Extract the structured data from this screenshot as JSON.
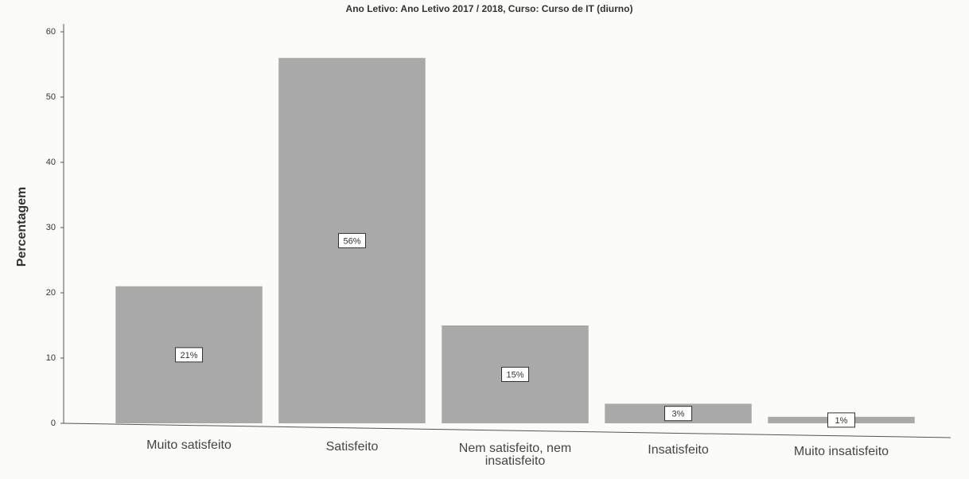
{
  "chart_data": {
    "type": "bar",
    "title": "Ano Letivo: Ano Letivo 2017 / 2018, Curso: Curso de IT (diurno)",
    "y_label": "Percentagem",
    "categories": [
      "Muito satisfeito",
      "Satisfeito",
      "Nem satisfeito, nem insatisfeito",
      "Insatisfeito",
      "Muito insatisfeito"
    ],
    "values": [
      21,
      56,
      15,
      3,
      1
    ],
    "value_labels": [
      "21%",
      "56%",
      "15%",
      "3%",
      "1%"
    ],
    "color": "#a9a9a9",
    "ylim": [
      0,
      60
    ],
    "yticks": [
      0,
      10,
      20,
      30,
      40,
      50,
      60
    ],
    "grid": false
  }
}
